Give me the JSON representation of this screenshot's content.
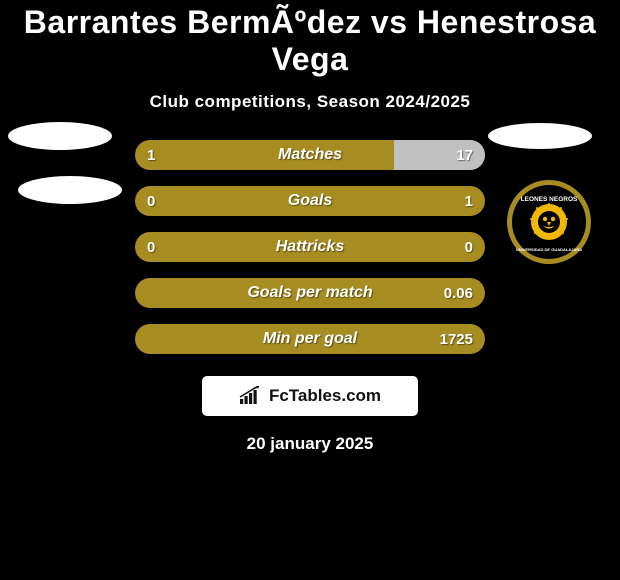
{
  "title": "Barrantes BermÃºdez vs Henestrosa Vega",
  "subtitle": "Club competitions, Season 2024/2025",
  "date": "20 january 2025",
  "brand": "FcTables.com",
  "colors": {
    "bg": "#000000",
    "bar_bg": "#a78c21",
    "bar_fill": "#c0c0c0",
    "text": "#ffffff",
    "badge_ring": "#a78c21",
    "badge_inner": "#000000",
    "badge_lion": "#f2b705",
    "badge_text": "#ffffff"
  },
  "rows": [
    {
      "label": "Matches",
      "left": "1",
      "right": "17",
      "left_pct": 0,
      "right_pct": 26
    },
    {
      "label": "Goals",
      "left": "0",
      "right": "1",
      "left_pct": 0,
      "right_pct": 0
    },
    {
      "label": "Hattricks",
      "left": "0",
      "right": "0",
      "left_pct": 0,
      "right_pct": 0
    },
    {
      "label": "Goals per match",
      "left": "",
      "right": "0.06",
      "left_pct": 0,
      "right_pct": 0
    },
    {
      "label": "Min per goal",
      "left": "",
      "right": "1725",
      "left_pct": 0,
      "right_pct": 0
    }
  ]
}
